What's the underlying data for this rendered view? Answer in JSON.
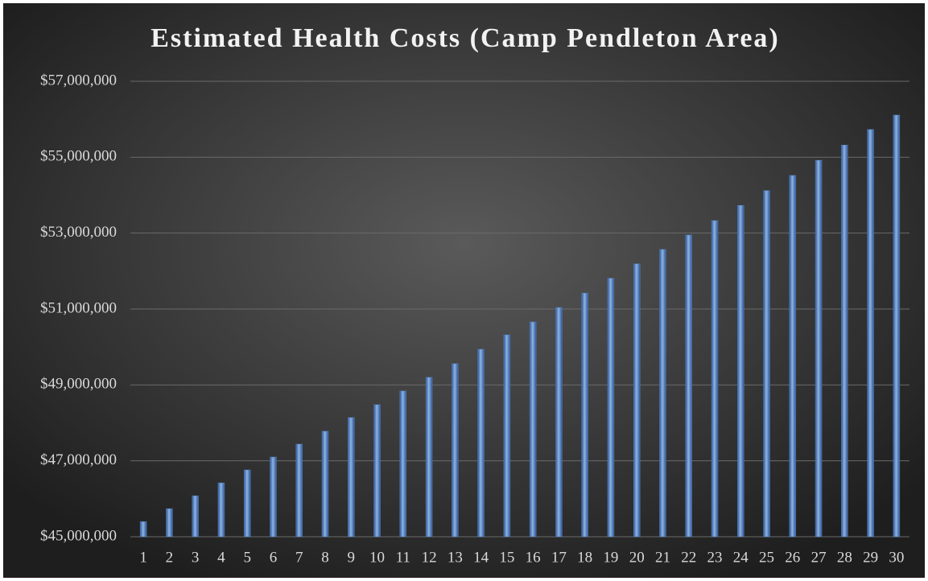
{
  "chart_data": {
    "type": "bar",
    "title": "Estimated Health Costs (Camp Pendleton Area)",
    "categories": [
      "1",
      "2",
      "3",
      "4",
      "5",
      "6",
      "7",
      "8",
      "9",
      "10",
      "11",
      "12",
      "13",
      "14",
      "15",
      "16",
      "17",
      "18",
      "19",
      "20",
      "21",
      "22",
      "23",
      "24",
      "25",
      "26",
      "27",
      "28",
      "29",
      "30"
    ],
    "values": [
      45400000,
      45740000,
      46080000,
      46420000,
      46760000,
      47100000,
      47440000,
      47780000,
      48140000,
      48480000,
      48840000,
      49200000,
      49560000,
      49940000,
      50320000,
      50660000,
      51040000,
      51420000,
      51810000,
      52190000,
      52570000,
      52950000,
      53330000,
      53730000,
      54120000,
      54520000,
      54920000,
      55320000,
      55730000,
      56110000
    ],
    "color": "#4f81bd",
    "ylim": [
      45000000,
      57000000
    ],
    "yticks": [
      {
        "value": 45000000,
        "label": "$45,000,000"
      },
      {
        "value": 47000000,
        "label": "$47,000,000"
      },
      {
        "value": 49000000,
        "label": "$49,000,000"
      },
      {
        "value": 51000000,
        "label": "$51,000,000"
      },
      {
        "value": 53000000,
        "label": "$53,000,000"
      },
      {
        "value": 55000000,
        "label": "$55,000,000"
      },
      {
        "value": 57000000,
        "label": "$57,000,000"
      }
    ],
    "grid": true
  }
}
